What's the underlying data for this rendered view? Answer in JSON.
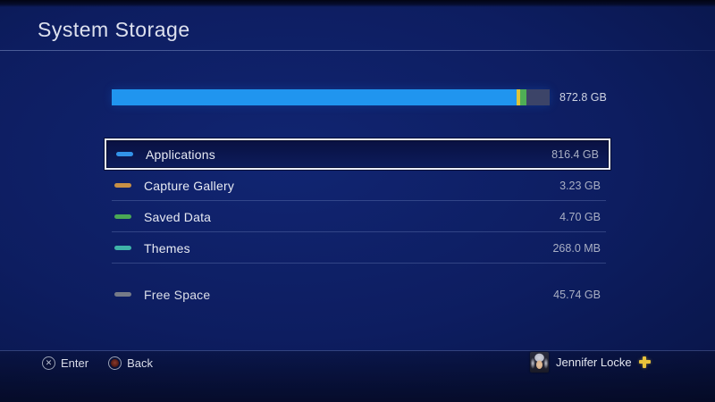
{
  "title": "System Storage",
  "storage_bar": {
    "total_label": "872.8 GB",
    "segments": [
      {
        "name": "applications-segment",
        "color": "#2095ef",
        "percent": 92.4
      },
      {
        "name": "capture-gallery-segment",
        "color": "#ddc43a",
        "percent": 0.9
      },
      {
        "name": "saved-data-segment",
        "color": "#4fae55",
        "percent": 1.4
      },
      {
        "name": "free-space-segment",
        "color": "#3c4468",
        "percent": 5.3
      }
    ]
  },
  "items": [
    {
      "label": "Applications",
      "size": "816.4 GB",
      "color": "#3293e8",
      "selected": true,
      "separated": false
    },
    {
      "label": "Capture Gallery",
      "size": "3.23 GB",
      "color": "#c89045",
      "selected": false,
      "separated": false
    },
    {
      "label": "Saved Data",
      "size": "4.70 GB",
      "color": "#4aa855",
      "selected": false,
      "separated": false
    },
    {
      "label": "Themes",
      "size": "268.0 MB",
      "color": "#3fb3a8",
      "selected": false,
      "separated": false
    },
    {
      "label": "Free Space",
      "size": "45.74 GB",
      "color": "#767b88",
      "selected": false,
      "separated": true
    }
  ],
  "footer": {
    "hints": [
      {
        "icon": "cross-button-icon",
        "glyph": "✕",
        "label": "Enter"
      },
      {
        "icon": "circle-button-icon",
        "glyph": "",
        "label": "Back"
      }
    ],
    "user": {
      "name": "Jennifer Locke",
      "plus_icon": "ps-plus-icon"
    }
  }
}
